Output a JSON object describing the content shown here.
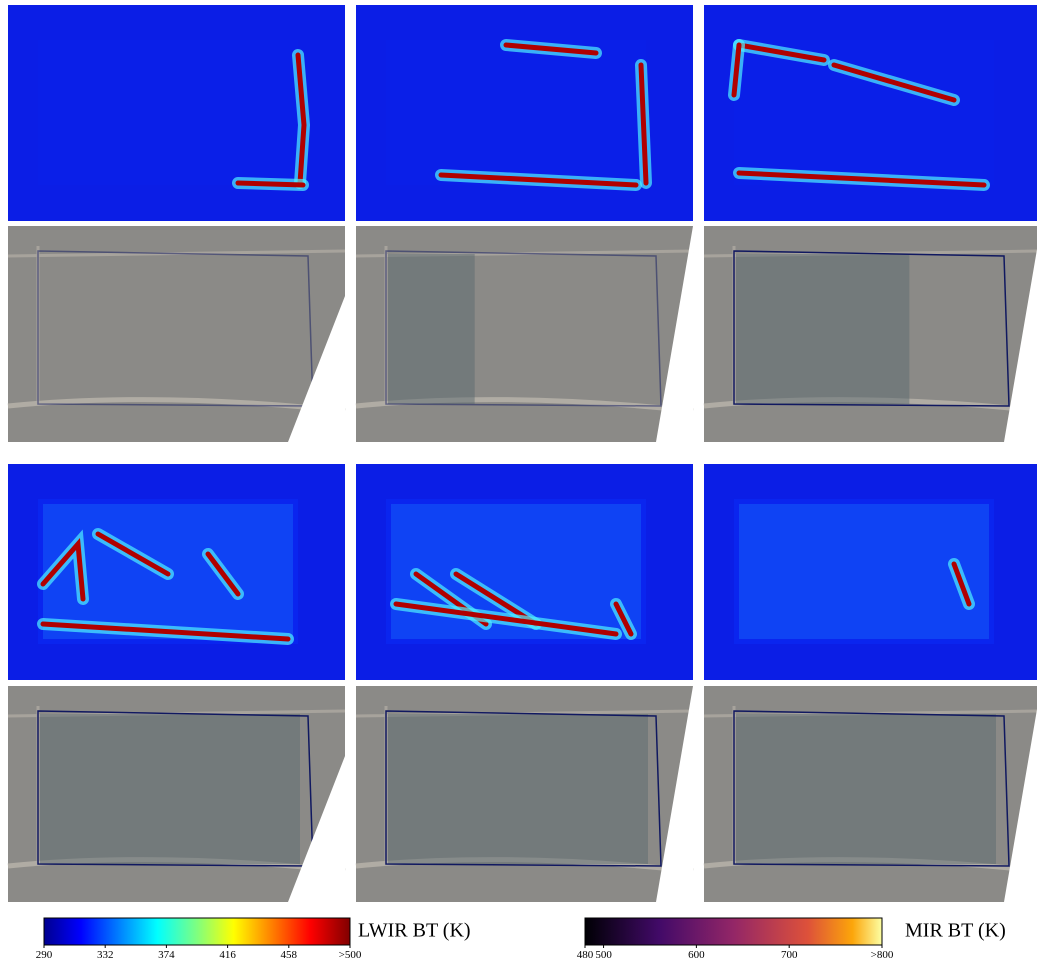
{
  "colorbars": [
    {
      "label": "LWIR BT (K)",
      "colormap": "jet",
      "lim": [
        290,
        500
      ],
      "ticks": [
        290,
        332,
        374,
        416,
        458,
        {
          "value": 500,
          "label": ">500"
        }
      ]
    },
    {
      "label": "MIR BT (K)",
      "colormap": "inferno",
      "lim": [
        480,
        800
      ],
      "ticks": [
        480,
        500,
        600,
        700,
        {
          "value": 800,
          "label": ">800"
        }
      ]
    }
  ]
}
